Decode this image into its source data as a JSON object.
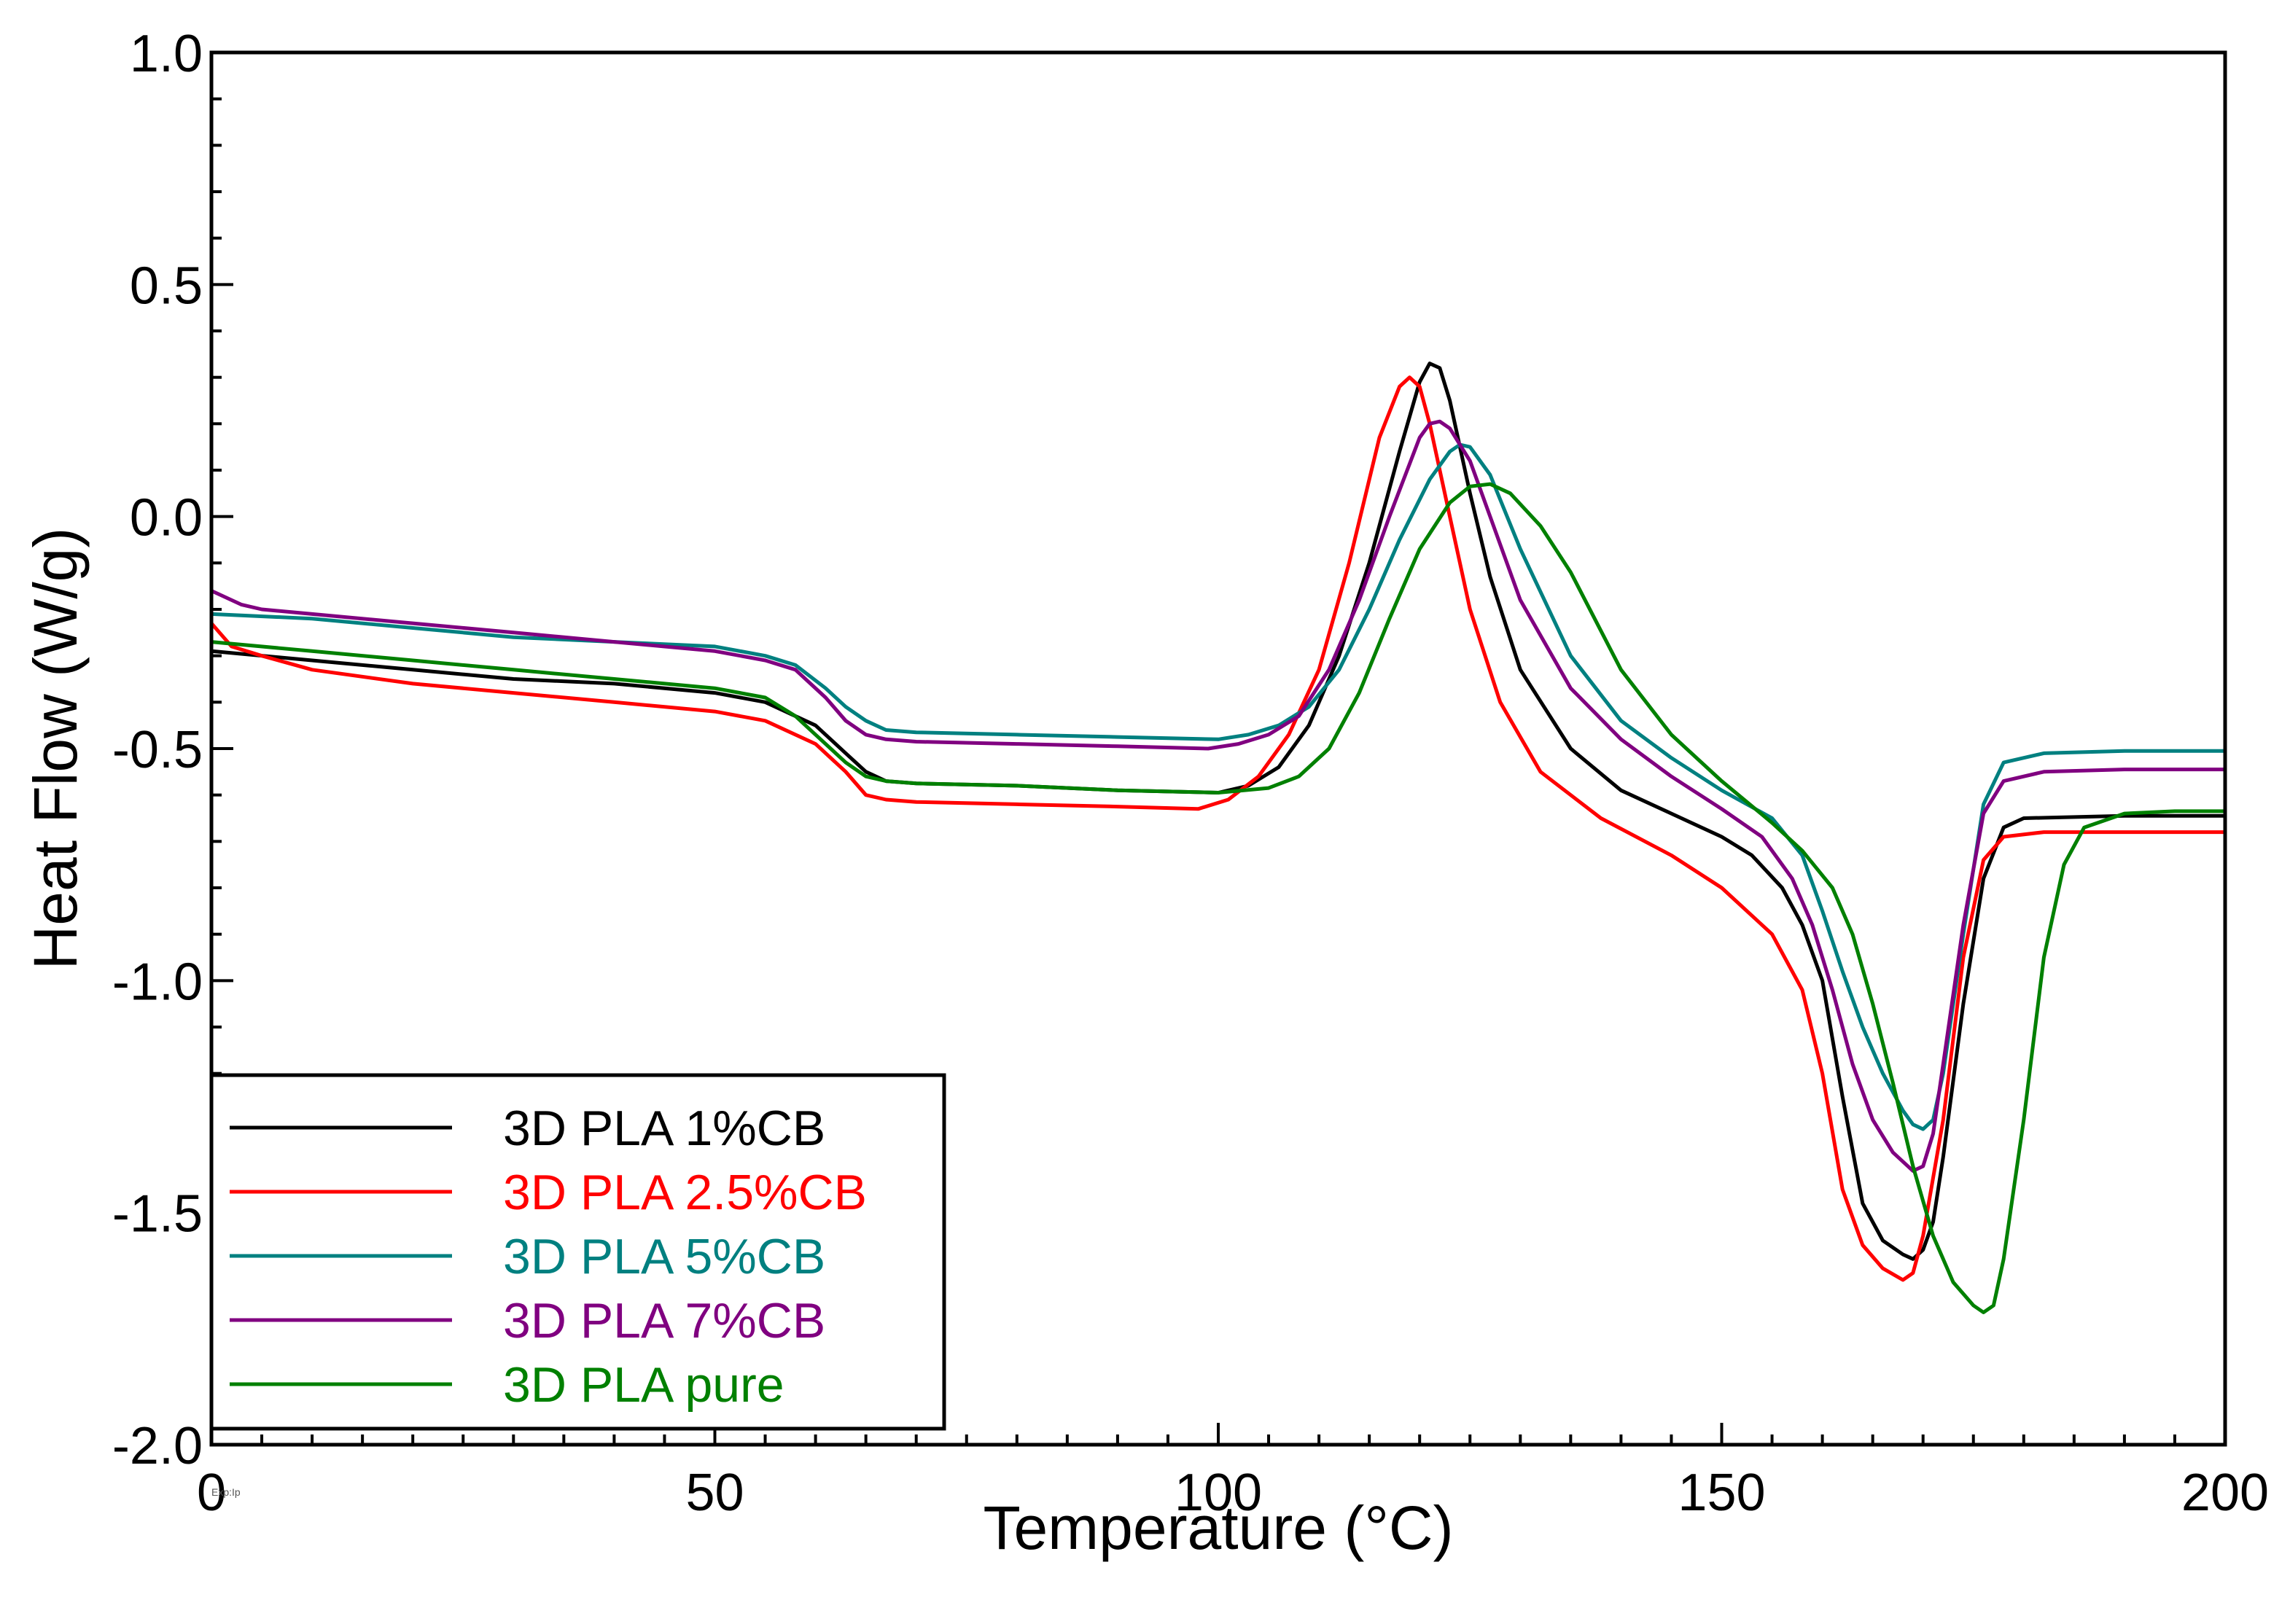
{
  "chart_data": {
    "type": "line",
    "title": "",
    "xlabel": "Temperature (°C)",
    "ylabel": "Heat Flow (W/g)",
    "xlim": [
      0,
      200
    ],
    "ylim": [
      -2.0,
      1.0
    ],
    "x_ticks": [
      0,
      50,
      100,
      150,
      200
    ],
    "x_tick_labels": [
      "0",
      "50",
      "100",
      "150",
      "200"
    ],
    "y_ticks": [
      1.0,
      0.5,
      0.0,
      -0.5,
      -1.0,
      -1.5,
      -2.0
    ],
    "y_tick_labels": [
      "1.0",
      "0.5",
      "0.0",
      "-0.5",
      "-1.0",
      "-1.5",
      "-2.0"
    ],
    "grid": false,
    "legend_position": "bottom-left",
    "series": [
      {
        "name": "3D PLA 1%CB",
        "color": "#000000",
        "points": [
          [
            0,
            -0.29
          ],
          [
            10,
            -0.31
          ],
          [
            20,
            -0.33
          ],
          [
            30,
            -0.35
          ],
          [
            40,
            -0.36
          ],
          [
            50,
            -0.38
          ],
          [
            55,
            -0.4
          ],
          [
            60,
            -0.45
          ],
          [
            63,
            -0.51
          ],
          [
            65,
            -0.55
          ],
          [
            67,
            -0.57
          ],
          [
            70,
            -0.575
          ],
          [
            80,
            -0.58
          ],
          [
            90,
            -0.59
          ],
          [
            100,
            -0.595
          ],
          [
            103,
            -0.58
          ],
          [
            106,
            -0.54
          ],
          [
            109,
            -0.45
          ],
          [
            112,
            -0.3
          ],
          [
            115,
            -0.1
          ],
          [
            118,
            0.14
          ],
          [
            120,
            0.29
          ],
          [
            121,
            0.33
          ],
          [
            122,
            0.32
          ],
          [
            123,
            0.25
          ],
          [
            125,
            0.05
          ],
          [
            127,
            -0.13
          ],
          [
            130,
            -0.33
          ],
          [
            135,
            -0.5
          ],
          [
            140,
            -0.59
          ],
          [
            145,
            -0.64
          ],
          [
            150,
            -0.69
          ],
          [
            153,
            -0.73
          ],
          [
            156,
            -0.8
          ],
          [
            158,
            -0.88
          ],
          [
            160,
            -1.0
          ],
          [
            162,
            -1.25
          ],
          [
            164,
            -1.48
          ],
          [
            166,
            -1.56
          ],
          [
            168,
            -1.59
          ],
          [
            169,
            -1.6
          ],
          [
            170,
            -1.58
          ],
          [
            171,
            -1.52
          ],
          [
            172,
            -1.38
          ],
          [
            174,
            -1.05
          ],
          [
            176,
            -0.78
          ],
          [
            178,
            -0.67
          ],
          [
            180,
            -0.65
          ],
          [
            190,
            -0.645
          ],
          [
            200,
            -0.645
          ]
        ]
      },
      {
        "name": "3D PLA 2.5%CB",
        "color": "#ff0000",
        "points": [
          [
            0,
            -0.23
          ],
          [
            2,
            -0.28
          ],
          [
            5,
            -0.3
          ],
          [
            10,
            -0.33
          ],
          [
            20,
            -0.36
          ],
          [
            30,
            -0.38
          ],
          [
            40,
            -0.4
          ],
          [
            50,
            -0.42
          ],
          [
            55,
            -0.44
          ],
          [
            60,
            -0.49
          ],
          [
            63,
            -0.55
          ],
          [
            65,
            -0.6
          ],
          [
            67,
            -0.61
          ],
          [
            70,
            -0.615
          ],
          [
            80,
            -0.62
          ],
          [
            90,
            -0.625
          ],
          [
            98,
            -0.63
          ],
          [
            101,
            -0.61
          ],
          [
            104,
            -0.56
          ],
          [
            107,
            -0.47
          ],
          [
            110,
            -0.33
          ],
          [
            113,
            -0.1
          ],
          [
            116,
            0.17
          ],
          [
            118,
            0.28
          ],
          [
            119,
            0.3
          ],
          [
            120,
            0.28
          ],
          [
            121,
            0.2
          ],
          [
            123,
            0.0
          ],
          [
            125,
            -0.2
          ],
          [
            128,
            -0.4
          ],
          [
            132,
            -0.55
          ],
          [
            138,
            -0.65
          ],
          [
            145,
            -0.73
          ],
          [
            150,
            -0.8
          ],
          [
            155,
            -0.9
          ],
          [
            158,
            -1.02
          ],
          [
            160,
            -1.2
          ],
          [
            162,
            -1.45
          ],
          [
            164,
            -1.57
          ],
          [
            166,
            -1.62
          ],
          [
            168,
            -1.645
          ],
          [
            169,
            -1.63
          ],
          [
            170,
            -1.55
          ],
          [
            172,
            -1.3
          ],
          [
            174,
            -0.95
          ],
          [
            176,
            -0.74
          ],
          [
            178,
            -0.69
          ],
          [
            182,
            -0.68
          ],
          [
            190,
            -0.68
          ],
          [
            200,
            -0.68
          ]
        ]
      },
      {
        "name": "3D PLA 5%CB",
        "color": "#008080",
        "points": [
          [
            0,
            -0.21
          ],
          [
            10,
            -0.22
          ],
          [
            20,
            -0.24
          ],
          [
            30,
            -0.26
          ],
          [
            40,
            -0.27
          ],
          [
            50,
            -0.28
          ],
          [
            55,
            -0.3
          ],
          [
            58,
            -0.32
          ],
          [
            61,
            -0.37
          ],
          [
            63,
            -0.41
          ],
          [
            65,
            -0.44
          ],
          [
            67,
            -0.46
          ],
          [
            70,
            -0.465
          ],
          [
            80,
            -0.47
          ],
          [
            90,
            -0.475
          ],
          [
            100,
            -0.48
          ],
          [
            103,
            -0.47
          ],
          [
            106,
            -0.45
          ],
          [
            109,
            -0.41
          ],
          [
            112,
            -0.33
          ],
          [
            115,
            -0.2
          ],
          [
            118,
            -0.05
          ],
          [
            121,
            0.08
          ],
          [
            123,
            0.14
          ],
          [
            124,
            0.155
          ],
          [
            125,
            0.15
          ],
          [
            127,
            0.09
          ],
          [
            130,
            -0.07
          ],
          [
            135,
            -0.3
          ],
          [
            140,
            -0.44
          ],
          [
            145,
            -0.52
          ],
          [
            150,
            -0.59
          ],
          [
            155,
            -0.65
          ],
          [
            158,
            -0.73
          ],
          [
            160,
            -0.85
          ],
          [
            162,
            -0.98
          ],
          [
            164,
            -1.1
          ],
          [
            166,
            -1.2
          ],
          [
            168,
            -1.28
          ],
          [
            169,
            -1.31
          ],
          [
            170,
            -1.32
          ],
          [
            171,
            -1.3
          ],
          [
            172,
            -1.2
          ],
          [
            174,
            -0.9
          ],
          [
            176,
            -0.62
          ],
          [
            178,
            -0.53
          ],
          [
            182,
            -0.51
          ],
          [
            190,
            -0.505
          ],
          [
            200,
            -0.505
          ]
        ]
      },
      {
        "name": "3D PLA 7%CB",
        "color": "#800080",
        "points": [
          [
            0,
            -0.16
          ],
          [
            3,
            -0.19
          ],
          [
            5,
            -0.2
          ],
          [
            10,
            -0.21
          ],
          [
            20,
            -0.23
          ],
          [
            30,
            -0.25
          ],
          [
            40,
            -0.27
          ],
          [
            50,
            -0.29
          ],
          [
            55,
            -0.31
          ],
          [
            58,
            -0.33
          ],
          [
            61,
            -0.39
          ],
          [
            63,
            -0.44
          ],
          [
            65,
            -0.47
          ],
          [
            67,
            -0.48
          ],
          [
            70,
            -0.485
          ],
          [
            80,
            -0.49
          ],
          [
            90,
            -0.495
          ],
          [
            99,
            -0.5
          ],
          [
            102,
            -0.49
          ],
          [
            105,
            -0.47
          ],
          [
            108,
            -0.43
          ],
          [
            111,
            -0.33
          ],
          [
            114,
            -0.18
          ],
          [
            117,
            0.0
          ],
          [
            120,
            0.17
          ],
          [
            121,
            0.2
          ],
          [
            122,
            0.205
          ],
          [
            123,
            0.19
          ],
          [
            125,
            0.12
          ],
          [
            127,
            0.0
          ],
          [
            130,
            -0.18
          ],
          [
            135,
            -0.37
          ],
          [
            140,
            -0.48
          ],
          [
            145,
            -0.56
          ],
          [
            150,
            -0.63
          ],
          [
            154,
            -0.69
          ],
          [
            157,
            -0.78
          ],
          [
            159,
            -0.88
          ],
          [
            161,
            -1.02
          ],
          [
            163,
            -1.18
          ],
          [
            165,
            -1.3
          ],
          [
            167,
            -1.37
          ],
          [
            169,
            -1.41
          ],
          [
            170,
            -1.4
          ],
          [
            171,
            -1.33
          ],
          [
            172,
            -1.18
          ],
          [
            174,
            -0.88
          ],
          [
            176,
            -0.64
          ],
          [
            178,
            -0.57
          ],
          [
            182,
            -0.55
          ],
          [
            190,
            -0.545
          ],
          [
            200,
            -0.545
          ]
        ]
      },
      {
        "name": "3D PLA pure",
        "color": "#008000",
        "points": [
          [
            0,
            -0.27
          ],
          [
            10,
            -0.29
          ],
          [
            20,
            -0.31
          ],
          [
            30,
            -0.33
          ],
          [
            40,
            -0.35
          ],
          [
            50,
            -0.37
          ],
          [
            55,
            -0.39
          ],
          [
            58,
            -0.43
          ],
          [
            60,
            -0.47
          ],
          [
            63,
            -0.53
          ],
          [
            65,
            -0.56
          ],
          [
            67,
            -0.57
          ],
          [
            70,
            -0.575
          ],
          [
            80,
            -0.58
          ],
          [
            90,
            -0.59
          ],
          [
            100,
            -0.595
          ],
          [
            105,
            -0.585
          ],
          [
            108,
            -0.56
          ],
          [
            111,
            -0.5
          ],
          [
            114,
            -0.38
          ],
          [
            117,
            -0.22
          ],
          [
            120,
            -0.07
          ],
          [
            123,
            0.03
          ],
          [
            125,
            0.065
          ],
          [
            127,
            0.07
          ],
          [
            129,
            0.05
          ],
          [
            132,
            -0.02
          ],
          [
            135,
            -0.12
          ],
          [
            140,
            -0.33
          ],
          [
            145,
            -0.47
          ],
          [
            150,
            -0.57
          ],
          [
            155,
            -0.66
          ],
          [
            158,
            -0.72
          ],
          [
            161,
            -0.8
          ],
          [
            163,
            -0.9
          ],
          [
            165,
            -1.05
          ],
          [
            167,
            -1.22
          ],
          [
            169,
            -1.4
          ],
          [
            171,
            -1.55
          ],
          [
            173,
            -1.65
          ],
          [
            175,
            -1.7
          ],
          [
            176,
            -1.715
          ],
          [
            177,
            -1.7
          ],
          [
            178,
            -1.6
          ],
          [
            180,
            -1.3
          ],
          [
            182,
            -0.95
          ],
          [
            184,
            -0.75
          ],
          [
            186,
            -0.67
          ],
          [
            190,
            -0.64
          ],
          [
            195,
            -0.635
          ],
          [
            200,
            -0.635
          ]
        ]
      }
    ]
  },
  "footnote": "Exp:Ip"
}
